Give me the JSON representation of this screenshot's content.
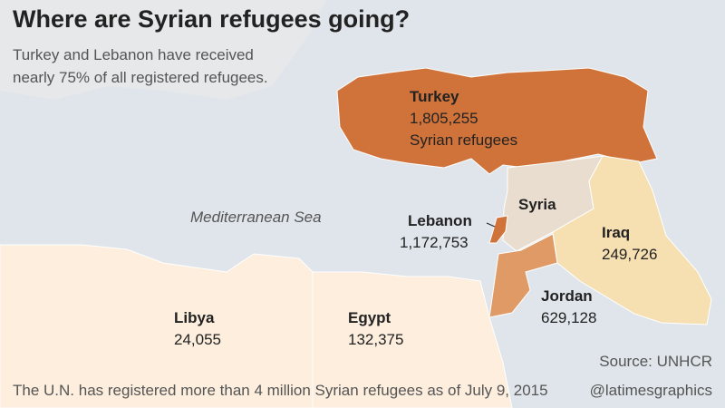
{
  "header": {
    "title": "Where are Syrian refugees going?",
    "subtitle": [
      "Turkey and Lebanon have received",
      "nearly 75% of all registered refugees."
    ]
  },
  "map": {
    "sea_label": "Mediterranean Sea",
    "countries": [
      {
        "name": "Turkey",
        "refugees": "1,805,255",
        "unit": "Syrian refugees"
      },
      {
        "name": "Syria"
      },
      {
        "name": "Lebanon",
        "refugees": "1,172,753"
      },
      {
        "name": "Iraq",
        "refugees": "249,726"
      },
      {
        "name": "Jordan",
        "refugees": "629,128"
      },
      {
        "name": "Libya",
        "refugees": "24,055"
      },
      {
        "name": "Egypt",
        "refugees": "132,375"
      }
    ]
  },
  "footer": {
    "note": "The U.N. has registered more than 4 million Syrian refugees as of July 9, 2015",
    "source": "Source: UNHCR",
    "credit": "@latimesgraphics"
  }
}
